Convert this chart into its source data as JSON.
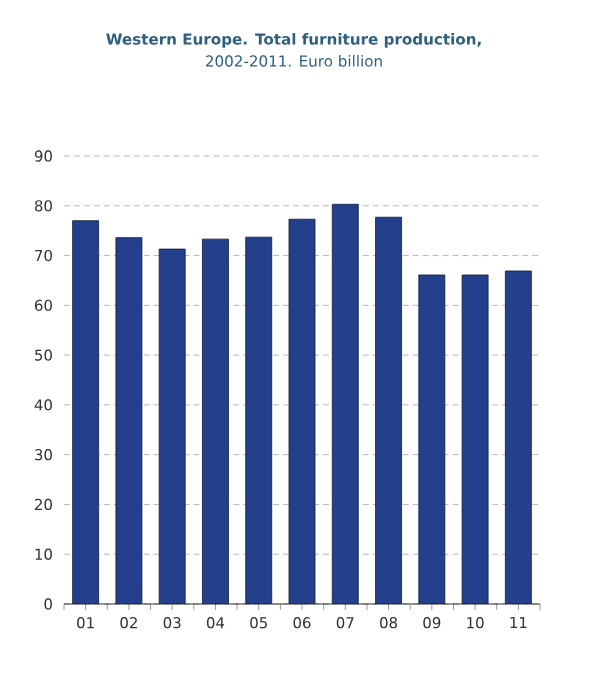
{
  "chart_data": {
    "type": "bar",
    "title": "Western Europe. Total furniture production,",
    "subtitle": "2002-2011. Euro billion",
    "categories": [
      "01",
      "02",
      "03",
      "04",
      "05",
      "06",
      "07",
      "08",
      "09",
      "10",
      "11"
    ],
    "values": [
      77,
      73.6,
      71.3,
      73.3,
      73.7,
      77.3,
      80.3,
      77.7,
      66.1,
      66.1,
      66.9
    ],
    "color": "#24408c",
    "ylim": [
      0,
      90
    ],
    "yticks": [
      0,
      10,
      20,
      30,
      40,
      50,
      60,
      70,
      80,
      90
    ],
    "grid": "y"
  }
}
